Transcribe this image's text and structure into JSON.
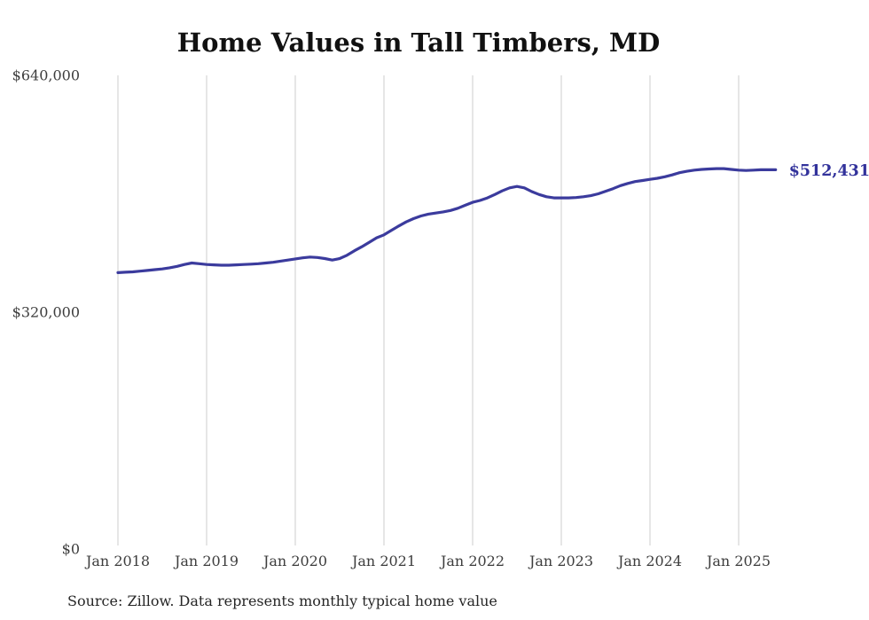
{
  "source_note": "Source: Zillow. Data represents monthly typical home value",
  "colors": {
    "line": "#3b3b9d",
    "end_label": "#32329b",
    "grid": "#cccccc",
    "tick_text": "#3d3d3d",
    "title_text": "#111111",
    "source_text": "#262626",
    "background": "#ffffff"
  },
  "chart_data": {
    "type": "line",
    "title": "Home Values in Tall Timbers, MD",
    "xlabel": "",
    "ylabel": "",
    "ylim": [
      0,
      640000
    ],
    "grid": "vertical-only",
    "legend": "none",
    "frequency": "monthly",
    "end_label": "$512,431",
    "latest_value": 512431,
    "y_ticks": [
      {
        "value": 0,
        "label": "$0"
      },
      {
        "value": 320000,
        "label": "$320,000"
      },
      {
        "value": 640000,
        "label": "$640,000"
      }
    ],
    "x_tick_labels": [
      "Jan 2018",
      "Jan 2019",
      "Jan 2020",
      "Jan 2021",
      "Jan 2022",
      "Jan 2023",
      "Jan 2024",
      "Jan 2025"
    ],
    "x_months": [
      "2018-01",
      "2018-02",
      "2018-03",
      "2018-04",
      "2018-05",
      "2018-06",
      "2018-07",
      "2018-08",
      "2018-09",
      "2018-10",
      "2018-11",
      "2018-12",
      "2019-01",
      "2019-02",
      "2019-03",
      "2019-04",
      "2019-05",
      "2019-06",
      "2019-07",
      "2019-08",
      "2019-09",
      "2019-10",
      "2019-11",
      "2019-12",
      "2020-01",
      "2020-02",
      "2020-03",
      "2020-04",
      "2020-05",
      "2020-06",
      "2020-07",
      "2020-08",
      "2020-09",
      "2020-10",
      "2020-11",
      "2020-12",
      "2021-01",
      "2021-02",
      "2021-03",
      "2021-04",
      "2021-05",
      "2021-06",
      "2021-07",
      "2021-08",
      "2021-09",
      "2021-10",
      "2021-11",
      "2021-12",
      "2022-01",
      "2022-02",
      "2022-03",
      "2022-04",
      "2022-05",
      "2022-06",
      "2022-07",
      "2022-08",
      "2022-09",
      "2022-10",
      "2022-11",
      "2022-12",
      "2023-01",
      "2023-02",
      "2023-03",
      "2023-04",
      "2023-05",
      "2023-06",
      "2023-07",
      "2023-08",
      "2023-09",
      "2023-10",
      "2023-11",
      "2023-12",
      "2024-01",
      "2024-02",
      "2024-03",
      "2024-04",
      "2024-05",
      "2024-06",
      "2024-07",
      "2024-08",
      "2024-09",
      "2024-10",
      "2024-11",
      "2024-12",
      "2025-01",
      "2025-02",
      "2025-03",
      "2025-04",
      "2025-05",
      "2025-06"
    ],
    "series": [
      {
        "name": "Typical home value",
        "values": [
          373500,
          374000,
          374500,
          375500,
          376500,
          377500,
          378500,
          380000,
          382000,
          384500,
          386500,
          385500,
          384500,
          384000,
          383500,
          383500,
          384000,
          384500,
          385000,
          385500,
          386500,
          387500,
          389000,
          390500,
          392000,
          393500,
          394500,
          394000,
          392500,
          390500,
          392500,
          397000,
          403000,
          408500,
          414500,
          420500,
          424500,
          430500,
          436500,
          442000,
          446500,
          450000,
          452500,
          454000,
          455500,
          457500,
          460500,
          464500,
          468500,
          471000,
          474500,
          479000,
          484000,
          488000,
          490000,
          488000,
          483000,
          479000,
          476000,
          474500,
          474500,
          474500,
          475000,
          476000,
          477500,
          480000,
          483500,
          487000,
          491000,
          494000,
          496500,
          498000,
          499500,
          501000,
          503000,
          505500,
          508500,
          510500,
          512000,
          513000,
          513500,
          514000,
          514000,
          513000,
          512000,
          511500,
          512000,
          512500,
          512500,
          512431
        ]
      }
    ]
  }
}
